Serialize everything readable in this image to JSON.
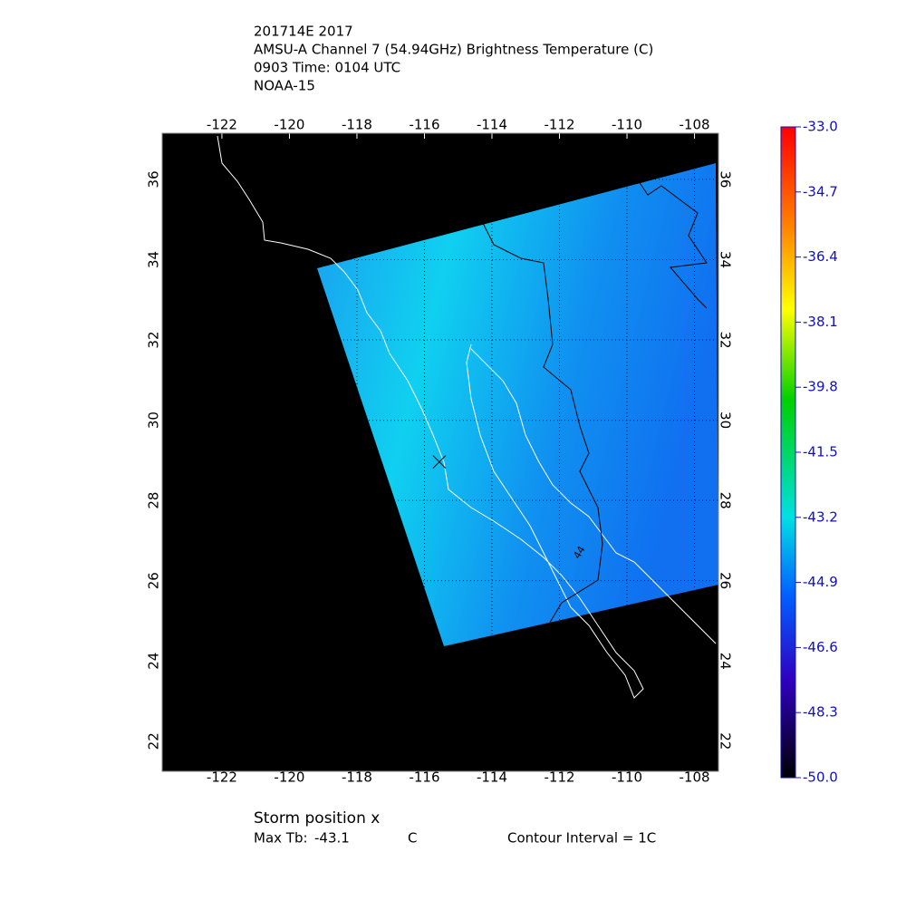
{
  "chart_data": {
    "type": "map",
    "title_lines": [
      "201714E 2017",
      "AMSU-A Channel 7 (54.94GHz) Brightness Temperature (C)",
      "0903 Time: 0104 UTC",
      "NOAA-15"
    ],
    "xlim": [
      -123.77,
      -107.29
    ],
    "ylim": [
      21.25,
      37.15
    ],
    "xticks": [
      -122,
      -120,
      -118,
      -116,
      -114,
      -112,
      -110,
      -108
    ],
    "yticks": [
      22,
      24,
      26,
      28,
      30,
      32,
      34,
      36
    ],
    "grid": true,
    "colorbar": {
      "lim": [
        -50,
        -33
      ],
      "ticks": [
        {
          "value": -33,
          "label": "-33.0"
        },
        {
          "value": -34.7,
          "label": "-34.7"
        },
        {
          "value": -36.4,
          "label": "-36.4"
        },
        {
          "value": -38.1,
          "label": "-38.1"
        },
        {
          "value": -39.8,
          "label": "-39.8"
        },
        {
          "value": -41.5,
          "label": "-41.5"
        },
        {
          "value": -43.2,
          "label": "-43.2"
        },
        {
          "value": -44.9,
          "label": "-44.9"
        },
        {
          "value": -46.6,
          "label": "-46.6"
        },
        {
          "value": -48.3,
          "label": "-48.3"
        },
        {
          "value": -50,
          "label": "-50.0"
        }
      ]
    },
    "storm_position": {
      "label": "Storm position x",
      "lon": -115.56,
      "lat": 28.96
    },
    "contour_label": {
      "text": "44",
      "lon": -111.4,
      "lat": 26.7
    },
    "max_tb": {
      "label": "Max Tb:",
      "value": -43.1,
      "unit": "C"
    },
    "contour_interval": "Contour Interval = 1C"
  }
}
